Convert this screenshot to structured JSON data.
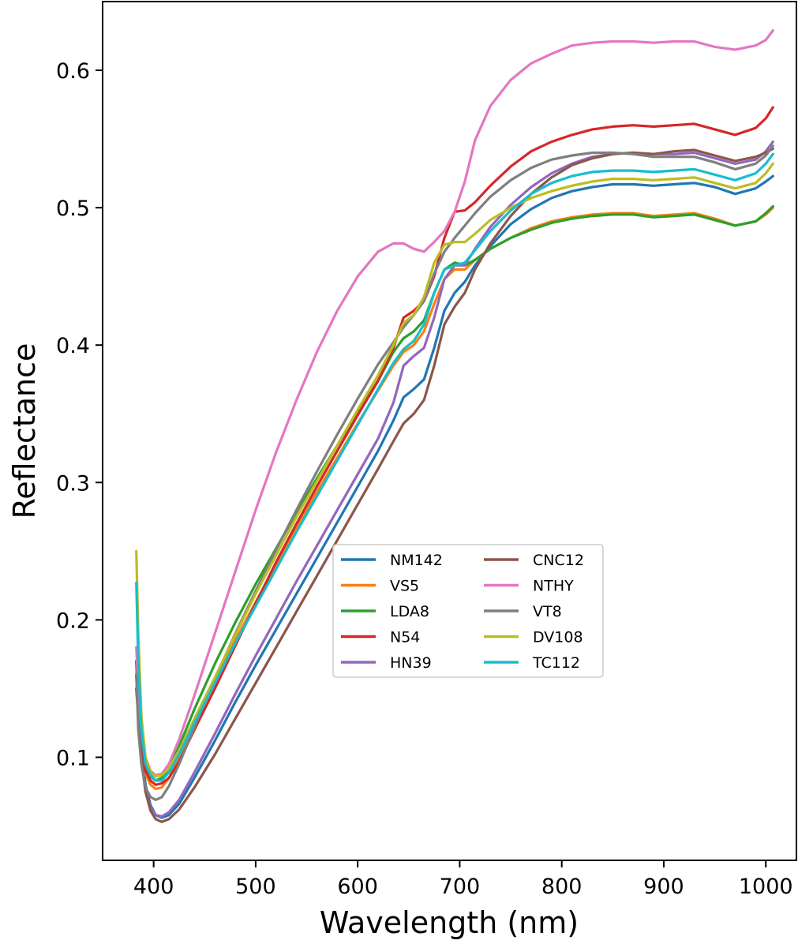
{
  "chart_data": {
    "type": "line",
    "title": "",
    "xlabel": "Wavelength (nm)",
    "ylabel": "Reflectance",
    "xlim": [
      350,
      1030
    ],
    "ylim": [
      0.025,
      0.65
    ],
    "xticks": [
      400,
      500,
      600,
      700,
      800,
      900,
      1000
    ],
    "xtick_labels": [
      "400",
      "500",
      "600",
      "700",
      "800",
      "900",
      "1000"
    ],
    "yticks": [
      0.1,
      0.2,
      0.3,
      0.4,
      0.5,
      0.6
    ],
    "ytick_labels": [
      "0.1",
      "0.2",
      "0.3",
      "0.4",
      "0.5",
      "0.6"
    ],
    "grid": false,
    "legend": {
      "placement": "center",
      "columns": 2
    },
    "x": [
      383,
      385,
      388,
      392,
      397,
      402,
      408,
      415,
      425,
      440,
      460,
      480,
      500,
      520,
      540,
      560,
      580,
      600,
      620,
      635,
      645,
      655,
      665,
      675,
      685,
      695,
      705,
      715,
      730,
      750,
      770,
      790,
      810,
      830,
      850,
      870,
      890,
      910,
      930,
      950,
      970,
      990,
      1000,
      1007
    ],
    "series": [
      {
        "name": "NM142",
        "color": "#1f77b4",
        "values": [
          0.17,
          0.14,
          0.11,
          0.08,
          0.065,
          0.058,
          0.056,
          0.058,
          0.066,
          0.085,
          0.112,
          0.14,
          0.167,
          0.193,
          0.219,
          0.245,
          0.271,
          0.297,
          0.323,
          0.345,
          0.362,
          0.368,
          0.375,
          0.398,
          0.425,
          0.438,
          0.446,
          0.458,
          0.472,
          0.488,
          0.499,
          0.507,
          0.512,
          0.515,
          0.517,
          0.517,
          0.516,
          0.517,
          0.518,
          0.515,
          0.51,
          0.514,
          0.519,
          0.523
        ]
      },
      {
        "name": "VS5",
        "color": "#ff7f0e",
        "values": [
          0.15,
          0.13,
          0.105,
          0.088,
          0.08,
          0.077,
          0.078,
          0.085,
          0.1,
          0.124,
          0.155,
          0.185,
          0.213,
          0.24,
          0.267,
          0.293,
          0.318,
          0.343,
          0.367,
          0.385,
          0.395,
          0.4,
          0.41,
          0.43,
          0.448,
          0.455,
          0.455,
          0.462,
          0.47,
          0.478,
          0.485,
          0.49,
          0.493,
          0.495,
          0.496,
          0.496,
          0.494,
          0.495,
          0.496,
          0.492,
          0.487,
          0.49,
          0.495,
          0.5
        ]
      },
      {
        "name": "LDA8",
        "color": "#2ca02c",
        "values": [
          0.16,
          0.14,
          0.11,
          0.093,
          0.086,
          0.083,
          0.085,
          0.092,
          0.108,
          0.135,
          0.168,
          0.198,
          0.226,
          0.252,
          0.278,
          0.303,
          0.327,
          0.351,
          0.374,
          0.395,
          0.405,
          0.41,
          0.418,
          0.438,
          0.455,
          0.46,
          0.458,
          0.462,
          0.47,
          0.478,
          0.484,
          0.489,
          0.492,
          0.494,
          0.495,
          0.495,
          0.493,
          0.494,
          0.495,
          0.491,
          0.487,
          0.49,
          0.496,
          0.501
        ]
      },
      {
        "name": "N54",
        "color": "#d62728",
        "values": [
          0.15,
          0.13,
          0.11,
          0.09,
          0.083,
          0.08,
          0.081,
          0.085,
          0.097,
          0.12,
          0.15,
          0.181,
          0.212,
          0.242,
          0.27,
          0.297,
          0.323,
          0.349,
          0.374,
          0.398,
          0.42,
          0.425,
          0.432,
          0.45,
          0.478,
          0.497,
          0.498,
          0.504,
          0.516,
          0.53,
          0.541,
          0.548,
          0.553,
          0.557,
          0.559,
          0.56,
          0.559,
          0.56,
          0.561,
          0.557,
          0.553,
          0.558,
          0.565,
          0.573
        ]
      },
      {
        "name": "HN39",
        "color": "#9467bd",
        "values": [
          0.16,
          0.13,
          0.1,
          0.075,
          0.063,
          0.058,
          0.057,
          0.06,
          0.069,
          0.089,
          0.117,
          0.146,
          0.174,
          0.201,
          0.228,
          0.254,
          0.28,
          0.306,
          0.332,
          0.358,
          0.385,
          0.392,
          0.398,
          0.42,
          0.448,
          0.458,
          0.458,
          0.47,
          0.486,
          0.502,
          0.515,
          0.525,
          0.532,
          0.537,
          0.539,
          0.54,
          0.539,
          0.539,
          0.54,
          0.536,
          0.532,
          0.535,
          0.541,
          0.548
        ]
      },
      {
        "name": "CNC12",
        "color": "#8c564b",
        "values": [
          0.17,
          0.13,
          0.1,
          0.075,
          0.061,
          0.055,
          0.053,
          0.055,
          0.062,
          0.078,
          0.102,
          0.128,
          0.154,
          0.18,
          0.206,
          0.232,
          0.258,
          0.284,
          0.31,
          0.33,
          0.343,
          0.35,
          0.36,
          0.385,
          0.415,
          0.428,
          0.438,
          0.455,
          0.474,
          0.494,
          0.51,
          0.522,
          0.531,
          0.536,
          0.539,
          0.54,
          0.539,
          0.541,
          0.542,
          0.538,
          0.534,
          0.537,
          0.54,
          0.543
        ]
      },
      {
        "name": "NTHY",
        "color": "#e377c2",
        "values": [
          0.18,
          0.15,
          0.12,
          0.1,
          0.09,
          0.087,
          0.088,
          0.095,
          0.113,
          0.145,
          0.19,
          0.235,
          0.28,
          0.322,
          0.36,
          0.395,
          0.425,
          0.45,
          0.468,
          0.474,
          0.474,
          0.47,
          0.468,
          0.475,
          0.483,
          0.497,
          0.519,
          0.549,
          0.574,
          0.593,
          0.605,
          0.612,
          0.618,
          0.62,
          0.621,
          0.621,
          0.62,
          0.621,
          0.621,
          0.617,
          0.615,
          0.618,
          0.622,
          0.629
        ]
      },
      {
        "name": "VT8",
        "color": "#7f7f7f",
        "values": [
          0.16,
          0.12,
          0.095,
          0.078,
          0.071,
          0.069,
          0.071,
          0.079,
          0.095,
          0.122,
          0.157,
          0.19,
          0.221,
          0.251,
          0.28,
          0.308,
          0.335,
          0.361,
          0.386,
          0.402,
          0.413,
          0.422,
          0.432,
          0.452,
          0.468,
          0.478,
          0.487,
          0.496,
          0.508,
          0.52,
          0.529,
          0.535,
          0.538,
          0.54,
          0.54,
          0.539,
          0.537,
          0.537,
          0.537,
          0.533,
          0.528,
          0.532,
          0.538,
          0.545
        ]
      },
      {
        "name": "DV108",
        "color": "#bcbd22",
        "values": [
          0.25,
          0.19,
          0.13,
          0.1,
          0.089,
          0.086,
          0.087,
          0.092,
          0.105,
          0.128,
          0.158,
          0.189,
          0.219,
          0.247,
          0.275,
          0.301,
          0.327,
          0.353,
          0.378,
          0.4,
          0.416,
          0.422,
          0.435,
          0.46,
          0.473,
          0.475,
          0.475,
          0.481,
          0.491,
          0.5,
          0.507,
          0.512,
          0.516,
          0.519,
          0.521,
          0.521,
          0.52,
          0.521,
          0.522,
          0.518,
          0.514,
          0.518,
          0.525,
          0.532
        ]
      },
      {
        "name": "TC112",
        "color": "#17becf",
        "values": [
          0.227,
          0.17,
          0.12,
          0.095,
          0.087,
          0.083,
          0.083,
          0.089,
          0.102,
          0.125,
          0.154,
          0.183,
          0.21,
          0.237,
          0.264,
          0.29,
          0.316,
          0.342,
          0.368,
          0.387,
          0.397,
          0.403,
          0.415,
          0.438,
          0.455,
          0.458,
          0.46,
          0.469,
          0.483,
          0.498,
          0.51,
          0.518,
          0.523,
          0.526,
          0.527,
          0.527,
          0.526,
          0.527,
          0.528,
          0.524,
          0.52,
          0.525,
          0.532,
          0.539
        ]
      }
    ]
  }
}
